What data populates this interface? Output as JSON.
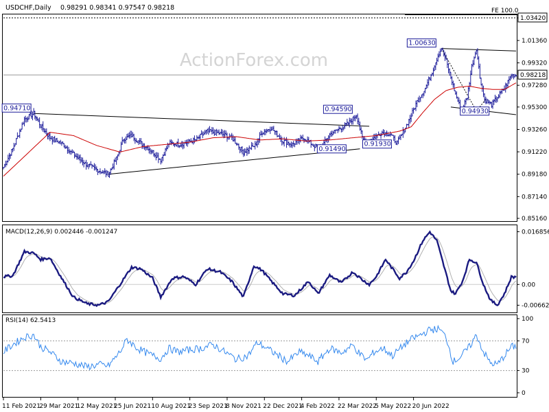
{
  "header": {
    "symbol": "USDCHF,Daily",
    "ohlc": "0.98291 0.98341 0.97547 0.98218"
  },
  "watermark": "ActionForex.com",
  "colors": {
    "price": "#1a1a99",
    "ema": "#cc0000",
    "macd": "#1a1a80",
    "signal": "#b0b0b0",
    "rsi": "#3388ee",
    "frame": "#000000",
    "grid_dash": "#888888",
    "level_line": "#999999"
  },
  "chart_data": [
    {
      "type": "line",
      "title": "USDCHF,Daily",
      "series": [
        {
          "name": "Price",
          "kind": "ohlc-bars"
        },
        {
          "name": "",
          "kind": "moving-average-red"
        }
      ],
      "yticks": [
        "1.03420",
        "1.01360",
        "0.99320",
        "0.97280",
        "0.95300",
        "0.93260",
        "0.91220",
        "0.89180",
        "0.87140",
        "0.85160"
      ],
      "ylim": [
        0.8516,
        1.04
      ],
      "last_price": "0.98218",
      "fe_label": "FE 100.0",
      "fe_level": 1.0342,
      "annotations": [
        {
          "label": "0.94710",
          "x": 10,
          "value": 0.9471
        },
        {
          "label": "0.89180",
          "x": 90,
          "value": 0.8918,
          "hidden": true
        },
        {
          "label": "0.91490",
          "x": 270,
          "value": 0.9149
        },
        {
          "label": "0.94590",
          "x": 303,
          "value": 0.9459
        },
        {
          "label": "0.91930",
          "x": 310,
          "value": 0.9193
        },
        {
          "label": "1.00630",
          "x": 375,
          "value": 1.0063
        },
        {
          "label": "0.94930",
          "x": 393,
          "value": 0.9493
        }
      ],
      "key_points": [
        [
          0,
          0.898
        ],
        [
          8,
          0.915
        ],
        [
          18,
          0.942
        ],
        [
          26,
          0.9471
        ],
        [
          32,
          0.936
        ],
        [
          40,
          0.925
        ],
        [
          50,
          0.92
        ],
        [
          60,
          0.91
        ],
        [
          72,
          0.9
        ],
        [
          82,
          0.895
        ],
        [
          90,
          0.8918
        ],
        [
          97,
          0.906
        ],
        [
          103,
          0.924
        ],
        [
          110,
          0.927
        ],
        [
          118,
          0.92
        ],
        [
          125,
          0.915
        ],
        [
          135,
          0.905
        ],
        [
          142,
          0.92
        ],
        [
          152,
          0.919
        ],
        [
          165,
          0.923
        ],
        [
          175,
          0.931
        ],
        [
          186,
          0.929
        ],
        [
          196,
          0.925
        ],
        [
          206,
          0.912
        ],
        [
          216,
          0.918
        ],
        [
          222,
          0.93
        ],
        [
          230,
          0.934
        ],
        [
          240,
          0.922
        ],
        [
          248,
          0.919
        ],
        [
          258,
          0.925
        ],
        [
          266,
          0.918
        ],
        [
          272,
          0.9149
        ],
        [
          280,
          0.928
        ],
        [
          288,
          0.933
        ],
        [
          296,
          0.938
        ],
        [
          303,
          0.9459
        ],
        [
          308,
          0.925
        ],
        [
          312,
          0.9193
        ],
        [
          318,
          0.925
        ],
        [
          325,
          0.93
        ],
        [
          332,
          0.928
        ],
        [
          338,
          0.92
        ],
        [
          343,
          0.93
        ],
        [
          349,
          0.943
        ],
        [
          355,
          0.958
        ],
        [
          362,
          0.97
        ],
        [
          368,
          0.985
        ],
        [
          373,
          1.0
        ],
        [
          376,
          1.0063
        ],
        [
          380,
          0.995
        ],
        [
          384,
          0.98
        ],
        [
          388,
          0.965
        ],
        [
          393,
          0.9493
        ],
        [
          398,
          0.962
        ],
        [
          402,
          0.99
        ],
        [
          406,
          1.0063
        ],
        [
          409,
          0.98
        ],
        [
          413,
          0.96
        ],
        [
          419,
          0.955
        ],
        [
          424,
          0.962
        ],
        [
          430,
          0.97
        ],
        [
          436,
          0.982
        ],
        [
          440,
          0.9822
        ]
      ],
      "n_bars": 441
    },
    {
      "type": "line",
      "title": "MACD(12,26,9) 0.002446 -0.001247",
      "series": [
        {
          "name": "MACD",
          "kind": "macd"
        },
        {
          "name": "",
          "kind": "signal"
        }
      ],
      "yticks": [
        "0.016856",
        "0.00",
        "-0.006629"
      ],
      "ylim": [
        -0.0085,
        0.0185
      ],
      "key_points": [
        [
          0,
          0.0025
        ],
        [
          8,
          0.0028
        ],
        [
          18,
          0.0105
        ],
        [
          26,
          0.01
        ],
        [
          32,
          0.008
        ],
        [
          40,
          0.0085
        ],
        [
          50,
          0.002
        ],
        [
          60,
          -0.004
        ],
        [
          72,
          -0.0062
        ],
        [
          82,
          -0.0066
        ],
        [
          90,
          -0.0055
        ],
        [
          100,
          0.0
        ],
        [
          110,
          0.0055
        ],
        [
          118,
          0.005
        ],
        [
          128,
          0.002
        ],
        [
          135,
          -0.004
        ],
        [
          145,
          0.002
        ],
        [
          155,
          0.0025
        ],
        [
          165,
          0.0
        ],
        [
          175,
          0.005
        ],
        [
          186,
          0.004
        ],
        [
          196,
          0.001
        ],
        [
          206,
          -0.004
        ],
        [
          215,
          0.006
        ],
        [
          222,
          0.0045
        ],
        [
          230,
          0.001
        ],
        [
          240,
          -0.003
        ],
        [
          250,
          -0.0035
        ],
        [
          262,
          0.001
        ],
        [
          270,
          -0.003
        ],
        [
          280,
          0.003
        ],
        [
          290,
          0.0005
        ],
        [
          300,
          0.004
        ],
        [
          308,
          0.0015
        ],
        [
          314,
          0.0
        ],
        [
          320,
          0.0025
        ],
        [
          328,
          0.008
        ],
        [
          334,
          0.005
        ],
        [
          340,
          0.002
        ],
        [
          346,
          0.004
        ],
        [
          352,
          0.0075
        ],
        [
          360,
          0.014
        ],
        [
          366,
          0.0168
        ],
        [
          372,
          0.014
        ],
        [
          378,
          0.006
        ],
        [
          384,
          -0.002
        ],
        [
          388,
          -0.003
        ],
        [
          394,
          0.001
        ],
        [
          400,
          0.008
        ],
        [
          406,
          0.007
        ],
        [
          412,
          0.0
        ],
        [
          418,
          -0.005
        ],
        [
          424,
          -0.0066
        ],
        [
          430,
          -0.003
        ],
        [
          436,
          0.0024
        ],
        [
          440,
          0.0024
        ]
      ],
      "n_bars": 441
    },
    {
      "type": "line",
      "title": "RSI(14) 62.5413",
      "series": [
        {
          "name": "RSI",
          "kind": "rsi"
        }
      ],
      "yticks": [
        "100",
        "70",
        "30",
        "0"
      ],
      "ylim": [
        0,
        100
      ],
      "levels": [
        70,
        30
      ],
      "key_points": [
        [
          0,
          55
        ],
        [
          8,
          65
        ],
        [
          18,
          75
        ],
        [
          26,
          78
        ],
        [
          32,
          62
        ],
        [
          40,
          55
        ],
        [
          50,
          42
        ],
        [
          60,
          40
        ],
        [
          72,
          35
        ],
        [
          82,
          38
        ],
        [
          90,
          36
        ],
        [
          100,
          55
        ],
        [
          106,
          72
        ],
        [
          115,
          60
        ],
        [
          125,
          52
        ],
        [
          135,
          46
        ],
        [
          142,
          60
        ],
        [
          150,
          55
        ],
        [
          160,
          58
        ],
        [
          170,
          60
        ],
        [
          180,
          65
        ],
        [
          190,
          55
        ],
        [
          200,
          45
        ],
        [
          210,
          50
        ],
        [
          218,
          68
        ],
        [
          226,
          60
        ],
        [
          234,
          52
        ],
        [
          244,
          42
        ],
        [
          254,
          55
        ],
        [
          262,
          50
        ],
        [
          270,
          42
        ],
        [
          280,
          60
        ],
        [
          290,
          54
        ],
        [
          300,
          64
        ],
        [
          306,
          52
        ],
        [
          312,
          44
        ],
        [
          318,
          55
        ],
        [
          326,
          60
        ],
        [
          334,
          50
        ],
        [
          342,
          62
        ],
        [
          350,
          72
        ],
        [
          358,
          78
        ],
        [
          366,
          85
        ],
        [
          374,
          86
        ],
        [
          380,
          75
        ],
        [
          386,
          42
        ],
        [
          392,
          48
        ],
        [
          400,
          62
        ],
        [
          406,
          78
        ],
        [
          412,
          55
        ],
        [
          418,
          40
        ],
        [
          424,
          38
        ],
        [
          430,
          50
        ],
        [
          436,
          62
        ],
        [
          440,
          62.5
        ]
      ],
      "n_bars": 441
    }
  ],
  "xaxis": {
    "labels": [
      "11 Feb 2021",
      "29 Mar 2021",
      "12 May 2021",
      "25 Jun 2021",
      "10 Aug 2021",
      "23 Sep 2021",
      "8 Nov 2021",
      "22 Dec 2021",
      "4 Feb 2022",
      "22 Mar 2022",
      "5 May 2022",
      "20 Jun 2022"
    ],
    "label_bars": [
      0,
      32,
      64,
      96,
      128,
      160,
      192,
      224,
      256,
      288,
      320,
      352
    ]
  },
  "ema": {
    "name": "",
    "key_points": [
      [
        0,
        0.89
      ],
      [
        20,
        0.91
      ],
      [
        40,
        0.93
      ],
      [
        60,
        0.927
      ],
      [
        80,
        0.918
      ],
      [
        100,
        0.912
      ],
      [
        120,
        0.917
      ],
      [
        140,
        0.919
      ],
      [
        160,
        0.921
      ],
      [
        180,
        0.925
      ],
      [
        200,
        0.926
      ],
      [
        220,
        0.923
      ],
      [
        240,
        0.924
      ],
      [
        260,
        0.922
      ],
      [
        280,
        0.923
      ],
      [
        300,
        0.925
      ],
      [
        320,
        0.927
      ],
      [
        340,
        0.931
      ],
      [
        350,
        0.935
      ],
      [
        360,
        0.948
      ],
      [
        370,
        0.96
      ],
      [
        380,
        0.968
      ],
      [
        390,
        0.971
      ],
      [
        400,
        0.972
      ],
      [
        410,
        0.97
      ],
      [
        420,
        0.969
      ],
      [
        430,
        0.969
      ],
      [
        440,
        0.975
      ]
    ]
  }
}
